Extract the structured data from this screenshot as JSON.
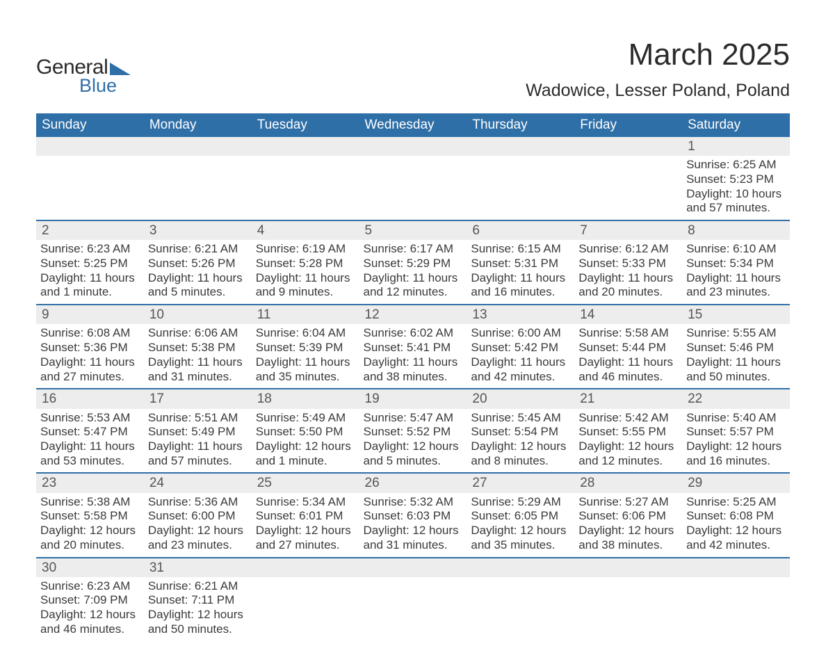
{
  "logo": {
    "line1": "General",
    "line2": "Blue"
  },
  "title": "March 2025",
  "location": "Wadowice, Lesser Poland, Poland",
  "colors": {
    "header_bg": "#2f6fa7",
    "header_text": "#ffffff",
    "daynum_bg": "#ededed",
    "row_border": "#2f6fa7",
    "body_text": "#3a3a3a",
    "title_text": "#2b2b2b",
    "logo_accent": "#2f6fa7"
  },
  "typography": {
    "title_fontsize_pt": 33,
    "location_fontsize_pt": 19,
    "header_fontsize_pt": 14,
    "daynum_fontsize_pt": 14,
    "body_fontsize_pt": 13
  },
  "calendar": {
    "columns": [
      "Sunday",
      "Monday",
      "Tuesday",
      "Wednesday",
      "Thursday",
      "Friday",
      "Saturday"
    ],
    "start_weekday_index": 6,
    "days": [
      {
        "n": 1,
        "sunrise": "6:25 AM",
        "sunset": "5:23 PM",
        "daylight": "10 hours and 57 minutes."
      },
      {
        "n": 2,
        "sunrise": "6:23 AM",
        "sunset": "5:25 PM",
        "daylight": "11 hours and 1 minute."
      },
      {
        "n": 3,
        "sunrise": "6:21 AM",
        "sunset": "5:26 PM",
        "daylight": "11 hours and 5 minutes."
      },
      {
        "n": 4,
        "sunrise": "6:19 AM",
        "sunset": "5:28 PM",
        "daylight": "11 hours and 9 minutes."
      },
      {
        "n": 5,
        "sunrise": "6:17 AM",
        "sunset": "5:29 PM",
        "daylight": "11 hours and 12 minutes."
      },
      {
        "n": 6,
        "sunrise": "6:15 AM",
        "sunset": "5:31 PM",
        "daylight": "11 hours and 16 minutes."
      },
      {
        "n": 7,
        "sunrise": "6:12 AM",
        "sunset": "5:33 PM",
        "daylight": "11 hours and 20 minutes."
      },
      {
        "n": 8,
        "sunrise": "6:10 AM",
        "sunset": "5:34 PM",
        "daylight": "11 hours and 23 minutes."
      },
      {
        "n": 9,
        "sunrise": "6:08 AM",
        "sunset": "5:36 PM",
        "daylight": "11 hours and 27 minutes."
      },
      {
        "n": 10,
        "sunrise": "6:06 AM",
        "sunset": "5:38 PM",
        "daylight": "11 hours and 31 minutes."
      },
      {
        "n": 11,
        "sunrise": "6:04 AM",
        "sunset": "5:39 PM",
        "daylight": "11 hours and 35 minutes."
      },
      {
        "n": 12,
        "sunrise": "6:02 AM",
        "sunset": "5:41 PM",
        "daylight": "11 hours and 38 minutes."
      },
      {
        "n": 13,
        "sunrise": "6:00 AM",
        "sunset": "5:42 PM",
        "daylight": "11 hours and 42 minutes."
      },
      {
        "n": 14,
        "sunrise": "5:58 AM",
        "sunset": "5:44 PM",
        "daylight": "11 hours and 46 minutes."
      },
      {
        "n": 15,
        "sunrise": "5:55 AM",
        "sunset": "5:46 PM",
        "daylight": "11 hours and 50 minutes."
      },
      {
        "n": 16,
        "sunrise": "5:53 AM",
        "sunset": "5:47 PM",
        "daylight": "11 hours and 53 minutes."
      },
      {
        "n": 17,
        "sunrise": "5:51 AM",
        "sunset": "5:49 PM",
        "daylight": "11 hours and 57 minutes."
      },
      {
        "n": 18,
        "sunrise": "5:49 AM",
        "sunset": "5:50 PM",
        "daylight": "12 hours and 1 minute."
      },
      {
        "n": 19,
        "sunrise": "5:47 AM",
        "sunset": "5:52 PM",
        "daylight": "12 hours and 5 minutes."
      },
      {
        "n": 20,
        "sunrise": "5:45 AM",
        "sunset": "5:54 PM",
        "daylight": "12 hours and 8 minutes."
      },
      {
        "n": 21,
        "sunrise": "5:42 AM",
        "sunset": "5:55 PM",
        "daylight": "12 hours and 12 minutes."
      },
      {
        "n": 22,
        "sunrise": "5:40 AM",
        "sunset": "5:57 PM",
        "daylight": "12 hours and 16 minutes."
      },
      {
        "n": 23,
        "sunrise": "5:38 AM",
        "sunset": "5:58 PM",
        "daylight": "12 hours and 20 minutes."
      },
      {
        "n": 24,
        "sunrise": "5:36 AM",
        "sunset": "6:00 PM",
        "daylight": "12 hours and 23 minutes."
      },
      {
        "n": 25,
        "sunrise": "5:34 AM",
        "sunset": "6:01 PM",
        "daylight": "12 hours and 27 minutes."
      },
      {
        "n": 26,
        "sunrise": "5:32 AM",
        "sunset": "6:03 PM",
        "daylight": "12 hours and 31 minutes."
      },
      {
        "n": 27,
        "sunrise": "5:29 AM",
        "sunset": "6:05 PM",
        "daylight": "12 hours and 35 minutes."
      },
      {
        "n": 28,
        "sunrise": "5:27 AM",
        "sunset": "6:06 PM",
        "daylight": "12 hours and 38 minutes."
      },
      {
        "n": 29,
        "sunrise": "5:25 AM",
        "sunset": "6:08 PM",
        "daylight": "12 hours and 42 minutes."
      },
      {
        "n": 30,
        "sunrise": "6:23 AM",
        "sunset": "7:09 PM",
        "daylight": "12 hours and 46 minutes."
      },
      {
        "n": 31,
        "sunrise": "6:21 AM",
        "sunset": "7:11 PM",
        "daylight": "12 hours and 50 minutes."
      }
    ],
    "labels": {
      "sunrise": "Sunrise: ",
      "sunset": "Sunset: ",
      "daylight": "Daylight: "
    }
  }
}
